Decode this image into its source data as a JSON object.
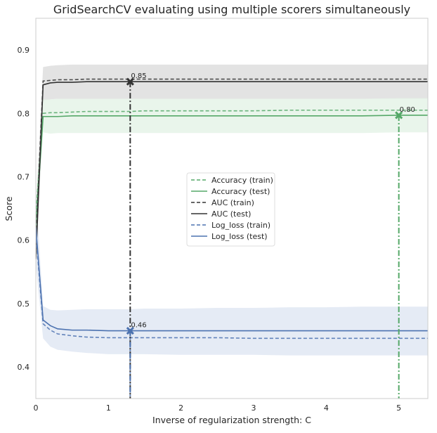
{
  "chart_data": {
    "type": "line",
    "title": "GridSearchCV evaluating using multiple scorers simultaneously",
    "xlabel": "Inverse of regularization strength: C",
    "ylabel": "Score",
    "xlim": [
      0,
      5.4
    ],
    "ylim": [
      0.35,
      0.95
    ],
    "xticks": [
      0,
      1,
      2,
      3,
      4,
      5
    ],
    "yticks": [
      0.4,
      0.5,
      0.6,
      0.7,
      0.8,
      0.9
    ],
    "grid": false,
    "legend_position": "center",
    "colors": {
      "accuracy": "#55a868",
      "auc": "#333333",
      "log_loss": "#4c72b0",
      "auc_band": "#dcdcdc",
      "accuracy_band": "#e3f3e6",
      "log_loss_band": "#dfe6f3"
    },
    "x": [
      0,
      0.1,
      0.2,
      0.3,
      0.5,
      0.7,
      1.0,
      1.3,
      1.5,
      2.0,
      2.5,
      3.0,
      3.5,
      4.0,
      4.5,
      5.0,
      5.4
    ],
    "series": [
      {
        "name": "Accuracy (train)",
        "metric": "accuracy",
        "style": "dashed",
        "values": [
          0.64,
          0.8,
          0.801,
          0.801,
          0.802,
          0.803,
          0.803,
          0.803,
          0.804,
          0.804,
          0.804,
          0.804,
          0.805,
          0.805,
          0.805,
          0.805,
          0.805
        ]
      },
      {
        "name": "Accuracy (test)",
        "metric": "accuracy",
        "style": "solid",
        "values": [
          0.62,
          0.795,
          0.795,
          0.795,
          0.796,
          0.796,
          0.796,
          0.796,
          0.796,
          0.796,
          0.796,
          0.796,
          0.796,
          0.796,
          0.796,
          0.797,
          0.797
        ]
      },
      {
        "name": "AUC (train)",
        "metric": "auc",
        "style": "dashed",
        "values": [
          0.6,
          0.851,
          0.852,
          0.853,
          0.853,
          0.854,
          0.854,
          0.854,
          0.854,
          0.854,
          0.854,
          0.854,
          0.854,
          0.854,
          0.854,
          0.854,
          0.854
        ]
      },
      {
        "name": "AUC (test)",
        "metric": "auc",
        "style": "solid",
        "values": [
          0.57,
          0.845,
          0.848,
          0.849,
          0.849,
          0.85,
          0.85,
          0.85,
          0.85,
          0.85,
          0.85,
          0.85,
          0.85,
          0.85,
          0.85,
          0.85,
          0.85
        ]
      },
      {
        "name": "Log_loss (train)",
        "metric": "log_loss",
        "style": "dashed",
        "values": [
          0.61,
          0.468,
          0.458,
          0.452,
          0.449,
          0.447,
          0.446,
          0.446,
          0.446,
          0.446,
          0.446,
          0.445,
          0.445,
          0.445,
          0.445,
          0.445,
          0.445
        ]
      },
      {
        "name": "Log_loss (test)",
        "metric": "log_loss",
        "style": "solid",
        "values": [
          0.62,
          0.474,
          0.465,
          0.46,
          0.458,
          0.458,
          0.457,
          0.457,
          0.457,
          0.457,
          0.457,
          0.457,
          0.457,
          0.457,
          0.457,
          0.457,
          0.457
        ]
      }
    ],
    "bands": [
      {
        "metric": "auc",
        "lower": [
          0.55,
          0.82,
          0.822,
          0.823,
          0.823,
          0.823,
          0.823,
          0.823,
          0.823,
          0.823,
          0.823,
          0.823,
          0.823,
          0.823,
          0.823,
          0.823,
          0.823
        ],
        "upper": [
          0.65,
          0.873,
          0.875,
          0.876,
          0.877,
          0.877,
          0.877,
          0.877,
          0.877,
          0.877,
          0.877,
          0.877,
          0.877,
          0.877,
          0.877,
          0.877,
          0.877
        ]
      },
      {
        "metric": "accuracy",
        "lower": [
          0.6,
          0.77,
          0.768,
          0.769,
          0.769,
          0.769,
          0.769,
          0.769,
          0.769,
          0.769,
          0.769,
          0.769,
          0.769,
          0.769,
          0.769,
          0.77,
          0.77
        ],
        "upper": [
          0.66,
          0.822,
          0.822,
          0.823,
          0.823,
          0.823,
          0.823,
          0.823,
          0.823,
          0.823,
          0.823,
          0.823,
          0.823,
          0.823,
          0.823,
          0.824,
          0.824
        ]
      },
      {
        "metric": "log_loss",
        "lower": [
          0.56,
          0.445,
          0.432,
          0.427,
          0.424,
          0.422,
          0.42,
          0.42,
          0.42,
          0.419,
          0.419,
          0.419,
          0.418,
          0.418,
          0.418,
          0.418,
          0.418
        ],
        "upper": [
          0.68,
          0.496,
          0.49,
          0.489,
          0.49,
          0.491,
          0.491,
          0.491,
          0.492,
          0.492,
          0.493,
          0.493,
          0.494,
          0.494,
          0.495,
          0.495,
          0.495
        ]
      }
    ],
    "best_points": [
      {
        "metric": "auc",
        "x": 1.3,
        "y": 0.85,
        "label": "0.85"
      },
      {
        "metric": "accuracy",
        "x": 5.0,
        "y": 0.797,
        "label": "0.80"
      },
      {
        "metric": "log_loss",
        "x": 1.3,
        "y": 0.457,
        "label": "0.46"
      }
    ]
  }
}
